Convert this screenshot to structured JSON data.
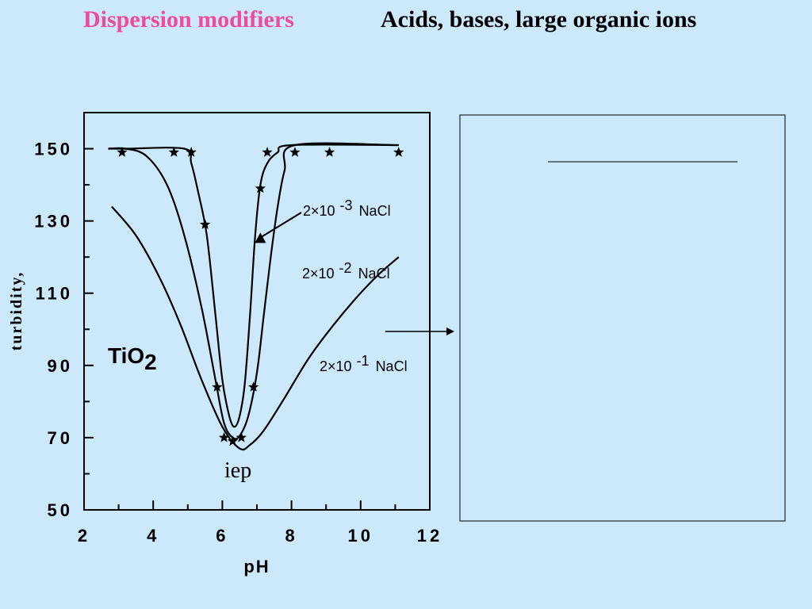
{
  "slide": {
    "title_left": "Dispersion modifiers",
    "title_right": "Acids, bases, large organic ions",
    "colors": {
      "background": "#cce9fb",
      "title_left": "#ee4c9a",
      "title_right": "#000000"
    }
  },
  "chart_data": {
    "type": "line",
    "xlabel": "pH",
    "ylabel": "turbidity,",
    "xlim": [
      2,
      12
    ],
    "ylim": [
      50,
      160
    ],
    "xticks": [
      "2",
      "4",
      "6",
      "8",
      "10",
      "12"
    ],
    "yticks": [
      "50",
      "70",
      "90",
      "110",
      "130",
      "150"
    ],
    "annotations": {
      "compound": "TiO",
      "compound_sub": "2",
      "iep": "iep",
      "conc": [
        {
          "base": "2×10",
          "exp": "-3",
          "salt": "NaCl"
        },
        {
          "base": "2×10",
          "exp": "-2",
          "salt": "NaCl"
        },
        {
          "base": "2×10",
          "exp": "-1",
          "salt": "NaCl"
        }
      ]
    },
    "series": [
      {
        "points": [
          [
            2.7,
            150
          ],
          [
            3.2,
            150
          ],
          [
            4.9,
            150
          ],
          [
            5.1,
            146
          ],
          [
            5.3,
            138
          ],
          [
            5.55,
            126
          ],
          [
            5.8,
            104
          ],
          [
            6.0,
            86
          ],
          [
            6.2,
            76
          ],
          [
            6.35,
            73
          ],
          [
            6.5,
            76
          ],
          [
            6.65,
            85
          ],
          [
            6.8,
            104
          ],
          [
            6.95,
            126
          ],
          [
            7.1,
            140
          ],
          [
            7.3,
            146
          ],
          [
            7.6,
            149
          ],
          [
            8.0,
            151
          ],
          [
            11.1,
            151
          ]
        ]
      },
      {
        "points": [
          [
            2.7,
            150
          ],
          [
            3.2,
            150
          ],
          [
            3.8,
            148
          ],
          [
            4.4,
            140
          ],
          [
            4.9,
            126
          ],
          [
            5.4,
            106
          ],
          [
            5.8,
            86
          ],
          [
            6.05,
            74
          ],
          [
            6.3,
            70
          ],
          [
            6.5,
            70.5
          ],
          [
            6.75,
            76
          ],
          [
            7.0,
            88
          ],
          [
            7.2,
            104
          ],
          [
            7.4,
            120
          ],
          [
            7.6,
            134
          ],
          [
            7.8,
            144
          ],
          [
            8.1,
            151
          ],
          [
            11.1,
            151
          ]
        ]
      },
      {
        "points": [
          [
            2.8,
            134
          ],
          [
            3.5,
            126
          ],
          [
            4.2,
            114
          ],
          [
            4.8,
            101
          ],
          [
            5.4,
            86
          ],
          [
            6.0,
            73
          ],
          [
            6.5,
            67
          ],
          [
            6.8,
            68
          ],
          [
            7.2,
            72
          ],
          [
            7.8,
            81
          ],
          [
            8.5,
            92
          ],
          [
            9.2,
            101
          ],
          [
            9.9,
            109
          ],
          [
            10.5,
            115
          ],
          [
            11.1,
            120
          ]
        ]
      }
    ],
    "markers": {
      "stars": [
        [
          3.1,
          149
        ],
        [
          4.6,
          149
        ],
        [
          5.1,
          149
        ],
        [
          5.5,
          129
        ],
        [
          5.85,
          84
        ],
        [
          6.05,
          70
        ],
        [
          6.3,
          69
        ],
        [
          6.55,
          70
        ],
        [
          6.9,
          84
        ],
        [
          7.1,
          139
        ],
        [
          7.3,
          149
        ],
        [
          8.1,
          149
        ],
        [
          9.1,
          149
        ],
        [
          11.1,
          149
        ]
      ],
      "triangle": [
        7.1,
        125
      ]
    }
  }
}
